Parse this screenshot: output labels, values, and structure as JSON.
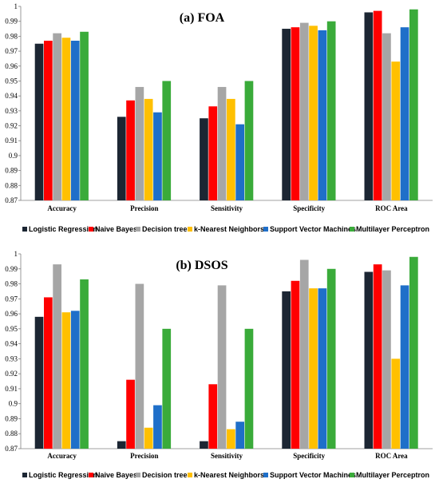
{
  "colors": {
    "Logistic Regression": "#1c2633",
    "Naive Bayes": "#ff0000",
    "Decision trees": "#a6a6a6",
    "k-Nearest Neighbors": "#ffc000",
    "Support Vector Machines": "#1f6fc9",
    "Multilayer Perceptron": "#3aab3a"
  },
  "chart_data": [
    {
      "type": "bar",
      "title": "(a) FOA",
      "categories": [
        "Accuracy",
        "Precision",
        "Sensitivity",
        "Specificity",
        "ROC Area"
      ],
      "ylim": [
        0.87,
        1
      ],
      "yticks": [
        "0.87",
        "0.88",
        "0.89",
        "0.9",
        "0.91",
        "0.92",
        "0.93",
        "0.94",
        "0.95",
        "0.96",
        "0.97",
        "0.98",
        "0.99",
        "1"
      ],
      "grid": false,
      "legend_position": "bottom",
      "series": [
        {
          "name": "Logistic Regression",
          "values": [
            0.975,
            0.926,
            0.925,
            0.985,
            0.996
          ]
        },
        {
          "name": "Naive Bayes",
          "values": [
            0.977,
            0.937,
            0.933,
            0.986,
            0.997
          ]
        },
        {
          "name": "Decision trees",
          "values": [
            0.982,
            0.946,
            0.946,
            0.989,
            0.982
          ]
        },
        {
          "name": "k-Nearest Neighbors",
          "values": [
            0.979,
            0.938,
            0.938,
            0.987,
            0.963
          ]
        },
        {
          "name": "Support Vector Machines",
          "values": [
            0.977,
            0.929,
            0.921,
            0.984,
            0.986
          ]
        },
        {
          "name": "Multilayer Perceptron",
          "values": [
            0.983,
            0.95,
            0.95,
            0.99,
            0.998
          ]
        }
      ]
    },
    {
      "type": "bar",
      "title": "(b) DSOS",
      "categories": [
        "Accuracy",
        "Precision",
        "Sensitivity",
        "Specificity",
        "ROC Area"
      ],
      "ylim": [
        0.87,
        1
      ],
      "yticks": [
        "0.87",
        "0.88",
        "0.89",
        "0.9",
        "0.91",
        "0.92",
        "0.93",
        "0.94",
        "0.95",
        "0.96",
        "0.97",
        "0.98",
        "0.99",
        "1"
      ],
      "grid": false,
      "legend_position": "bottom",
      "series": [
        {
          "name": "Logistic Regression",
          "values": [
            0.958,
            0.875,
            0.875,
            0.975,
            0.988
          ]
        },
        {
          "name": "Naive Bayes",
          "values": [
            0.971,
            0.916,
            0.913,
            0.982,
            0.993
          ]
        },
        {
          "name": "Decision trees",
          "values": [
            0.993,
            0.98,
            0.979,
            0.996,
            0.989
          ]
        },
        {
          "name": "k-Nearest Neighbors",
          "values": [
            0.961,
            0.884,
            0.883,
            0.977,
            0.93
          ]
        },
        {
          "name": "Support Vector Machines",
          "values": [
            0.962,
            0.899,
            0.888,
            0.977,
            0.979
          ]
        },
        {
          "name": "Multilayer Perceptron",
          "values": [
            0.983,
            0.95,
            0.95,
            0.99,
            0.998
          ]
        }
      ]
    }
  ]
}
